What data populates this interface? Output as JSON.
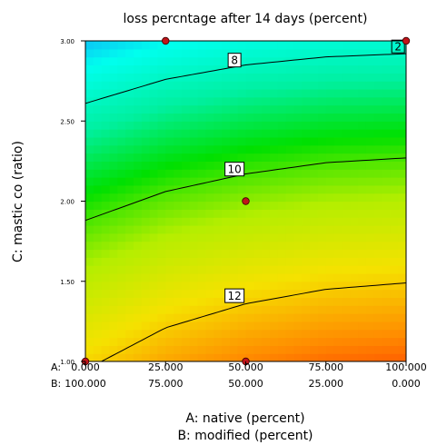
{
  "chart_data": {
    "type": "contour",
    "title": "loss percntage after 14 days (percent)",
    "xlabel_a": "A: native (percent)",
    "xlabel_b": "B: modified (percent)",
    "ylabel": "C: mastic co (ratio)",
    "x_row_a_prefix": "A:",
    "x_row_b_prefix": "B:",
    "x_ticks_a": [
      "0.000",
      "25.000",
      "50.000",
      "75.000",
      "100.000"
    ],
    "x_ticks_b": [
      "100.000",
      "75.000",
      "50.000",
      "25.000",
      "0.000"
    ],
    "x_tick_values": [
      0,
      25,
      50,
      75,
      100
    ],
    "y_ticks": [
      "1.00",
      "1.50",
      "2.00",
      "2.50",
      "3.00"
    ],
    "y_tick_values": [
      1.0,
      1.5,
      2.0,
      2.5,
      3.0
    ],
    "xlim": [
      0,
      100
    ],
    "ylim": [
      1.0,
      3.0
    ],
    "colorscale": [
      "#ff2000",
      "#ff8c00",
      "#f5e200",
      "#b4ee00",
      "#00e000",
      "#00f0a0",
      "#00ffee",
      "#1a6eff"
    ],
    "contours": [
      {
        "label": "8",
        "x": [
          0,
          25,
          50,
          75,
          100
        ],
        "y": [
          2.61,
          2.76,
          2.85,
          2.9,
          2.92
        ]
      },
      {
        "label": "10",
        "x": [
          0,
          25,
          50,
          75,
          100
        ],
        "y": [
          1.88,
          2.06,
          2.17,
          2.24,
          2.27
        ]
      },
      {
        "label": "12",
        "x": [
          5,
          25,
          50,
          75,
          100
        ],
        "y": [
          1.0,
          1.21,
          1.36,
          1.45,
          1.49
        ]
      }
    ],
    "contour_label_positions": [
      {
        "label": "8",
        "x": 46.5,
        "y": 2.88
      },
      {
        "label": "10",
        "x": 46.5,
        "y": 2.2
      },
      {
        "label": "12",
        "x": 46.5,
        "y": 1.41
      }
    ],
    "corner_label": {
      "text": "2",
      "x": 97.5,
      "y": 2.965
    },
    "design_points": [
      {
        "x": 0,
        "y": 1.0
      },
      {
        "x": 25,
        "y": 3.0
      },
      {
        "x": 50,
        "y": 2.0
      },
      {
        "x": 50,
        "y": 1.0
      },
      {
        "x": 100,
        "y": 3.0
      }
    ]
  }
}
